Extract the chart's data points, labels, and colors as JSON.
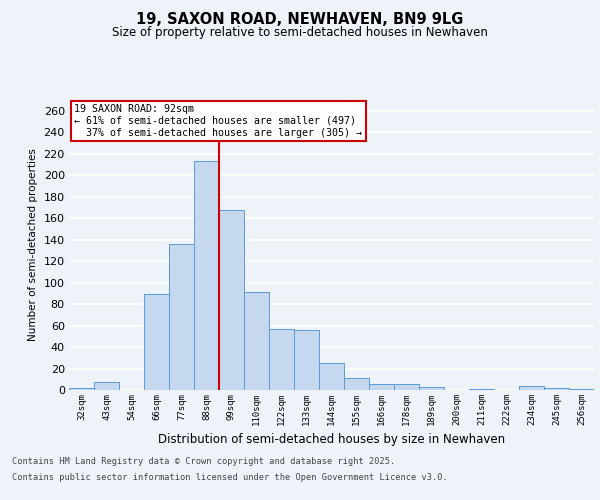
{
  "title": "19, SAXON ROAD, NEWHAVEN, BN9 9LG",
  "subtitle": "Size of property relative to semi-detached houses in Newhaven",
  "xlabel": "Distribution of semi-detached houses by size in Newhaven",
  "ylabel": "Number of semi-detached properties",
  "categories": [
    "32sqm",
    "43sqm",
    "54sqm",
    "66sqm",
    "77sqm",
    "88sqm",
    "99sqm",
    "110sqm",
    "122sqm",
    "133sqm",
    "144sqm",
    "155sqm",
    "166sqm",
    "178sqm",
    "189sqm",
    "200sqm",
    "211sqm",
    "222sqm",
    "234sqm",
    "245sqm",
    "256sqm"
  ],
  "values": [
    2,
    7,
    0,
    89,
    136,
    213,
    168,
    91,
    57,
    56,
    25,
    11,
    6,
    6,
    3,
    0,
    1,
    0,
    4,
    2,
    1
  ],
  "bar_color": "#c5d8f0",
  "bar_edge_color": "#5b9bd5",
  "pct_smaller": 61,
  "count_smaller": 497,
  "pct_larger": 37,
  "count_larger": 305,
  "vline_bin_index": 5,
  "ylim": [
    0,
    270
  ],
  "yticks": [
    0,
    20,
    40,
    60,
    80,
    100,
    120,
    140,
    160,
    180,
    200,
    220,
    240,
    260
  ],
  "background_color": "#eef2f9",
  "grid_color": "#ffffff",
  "annotation_box_color": "#ffffff",
  "annotation_box_edge": "#cc0000",
  "vline_color": "#cc0000",
  "footer_line1": "Contains HM Land Registry data © Crown copyright and database right 2025.",
  "footer_line2": "Contains public sector information licensed under the Open Government Licence v3.0."
}
